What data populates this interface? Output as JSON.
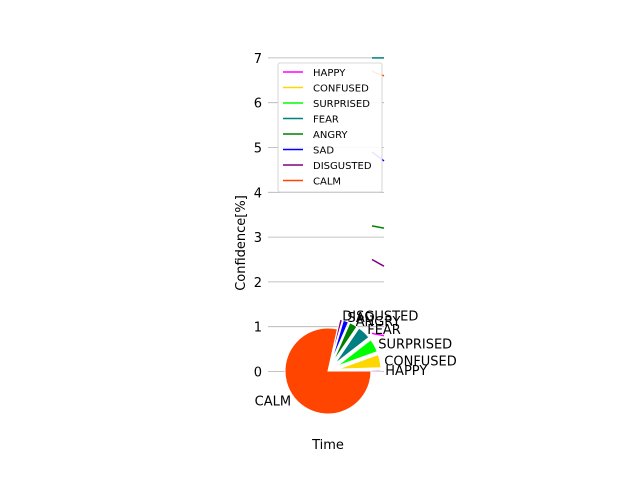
{
  "chart_data": [
    {
      "type": "line",
      "xlabel": "Time",
      "ylabel": "Confidence[%]",
      "ylim": [
        -0.5,
        7.2
      ],
      "yticks": [
        0,
        1,
        2,
        3,
        4,
        5,
        6,
        7
      ],
      "grid": "horizontal",
      "legend_position": "upper-right",
      "series": [
        {
          "name": "HAPPY",
          "color": "#ff00ff",
          "values": [
            0.85,
            0.8
          ]
        },
        {
          "name": "CONFUSED",
          "color": "#ffd700",
          "values": []
        },
        {
          "name": "SURPRISED",
          "color": "#00ff00",
          "values": []
        },
        {
          "name": "FEAR",
          "color": "#008080",
          "values": [
            7.0,
            7.0
          ]
        },
        {
          "name": "ANGRY",
          "color": "#008000",
          "values": [
            3.25,
            3.2
          ]
        },
        {
          "name": "SAD",
          "color": "#0000ff",
          "values": [
            4.9,
            4.7
          ]
        },
        {
          "name": "DISGUSTED",
          "color": "#800080",
          "values": [
            2.5,
            2.35
          ]
        },
        {
          "name": "CALM",
          "color": "#ff4500",
          "values": [
            6.7,
            6.6
          ]
        }
      ]
    },
    {
      "type": "pie",
      "slices": [
        {
          "label": "HAPPY",
          "value": 0.5,
          "color": "#ff00ff"
        },
        {
          "label": "CONFUSED",
          "value": 5.0,
          "color": "#ffd700"
        },
        {
          "label": "SURPRISED",
          "value": 5.0,
          "color": "#00ff00"
        },
        {
          "label": "FEAR",
          "value": 5.0,
          "color": "#008080"
        },
        {
          "label": "ANGRY",
          "value": 3.0,
          "color": "#008000"
        },
        {
          "label": "SAD",
          "value": 2.0,
          "color": "#0000ff"
        },
        {
          "label": "DISGUSTED",
          "value": 1.0,
          "color": "#800080"
        },
        {
          "label": "CALM",
          "value": 78.5,
          "color": "#ff4500"
        }
      ]
    }
  ]
}
